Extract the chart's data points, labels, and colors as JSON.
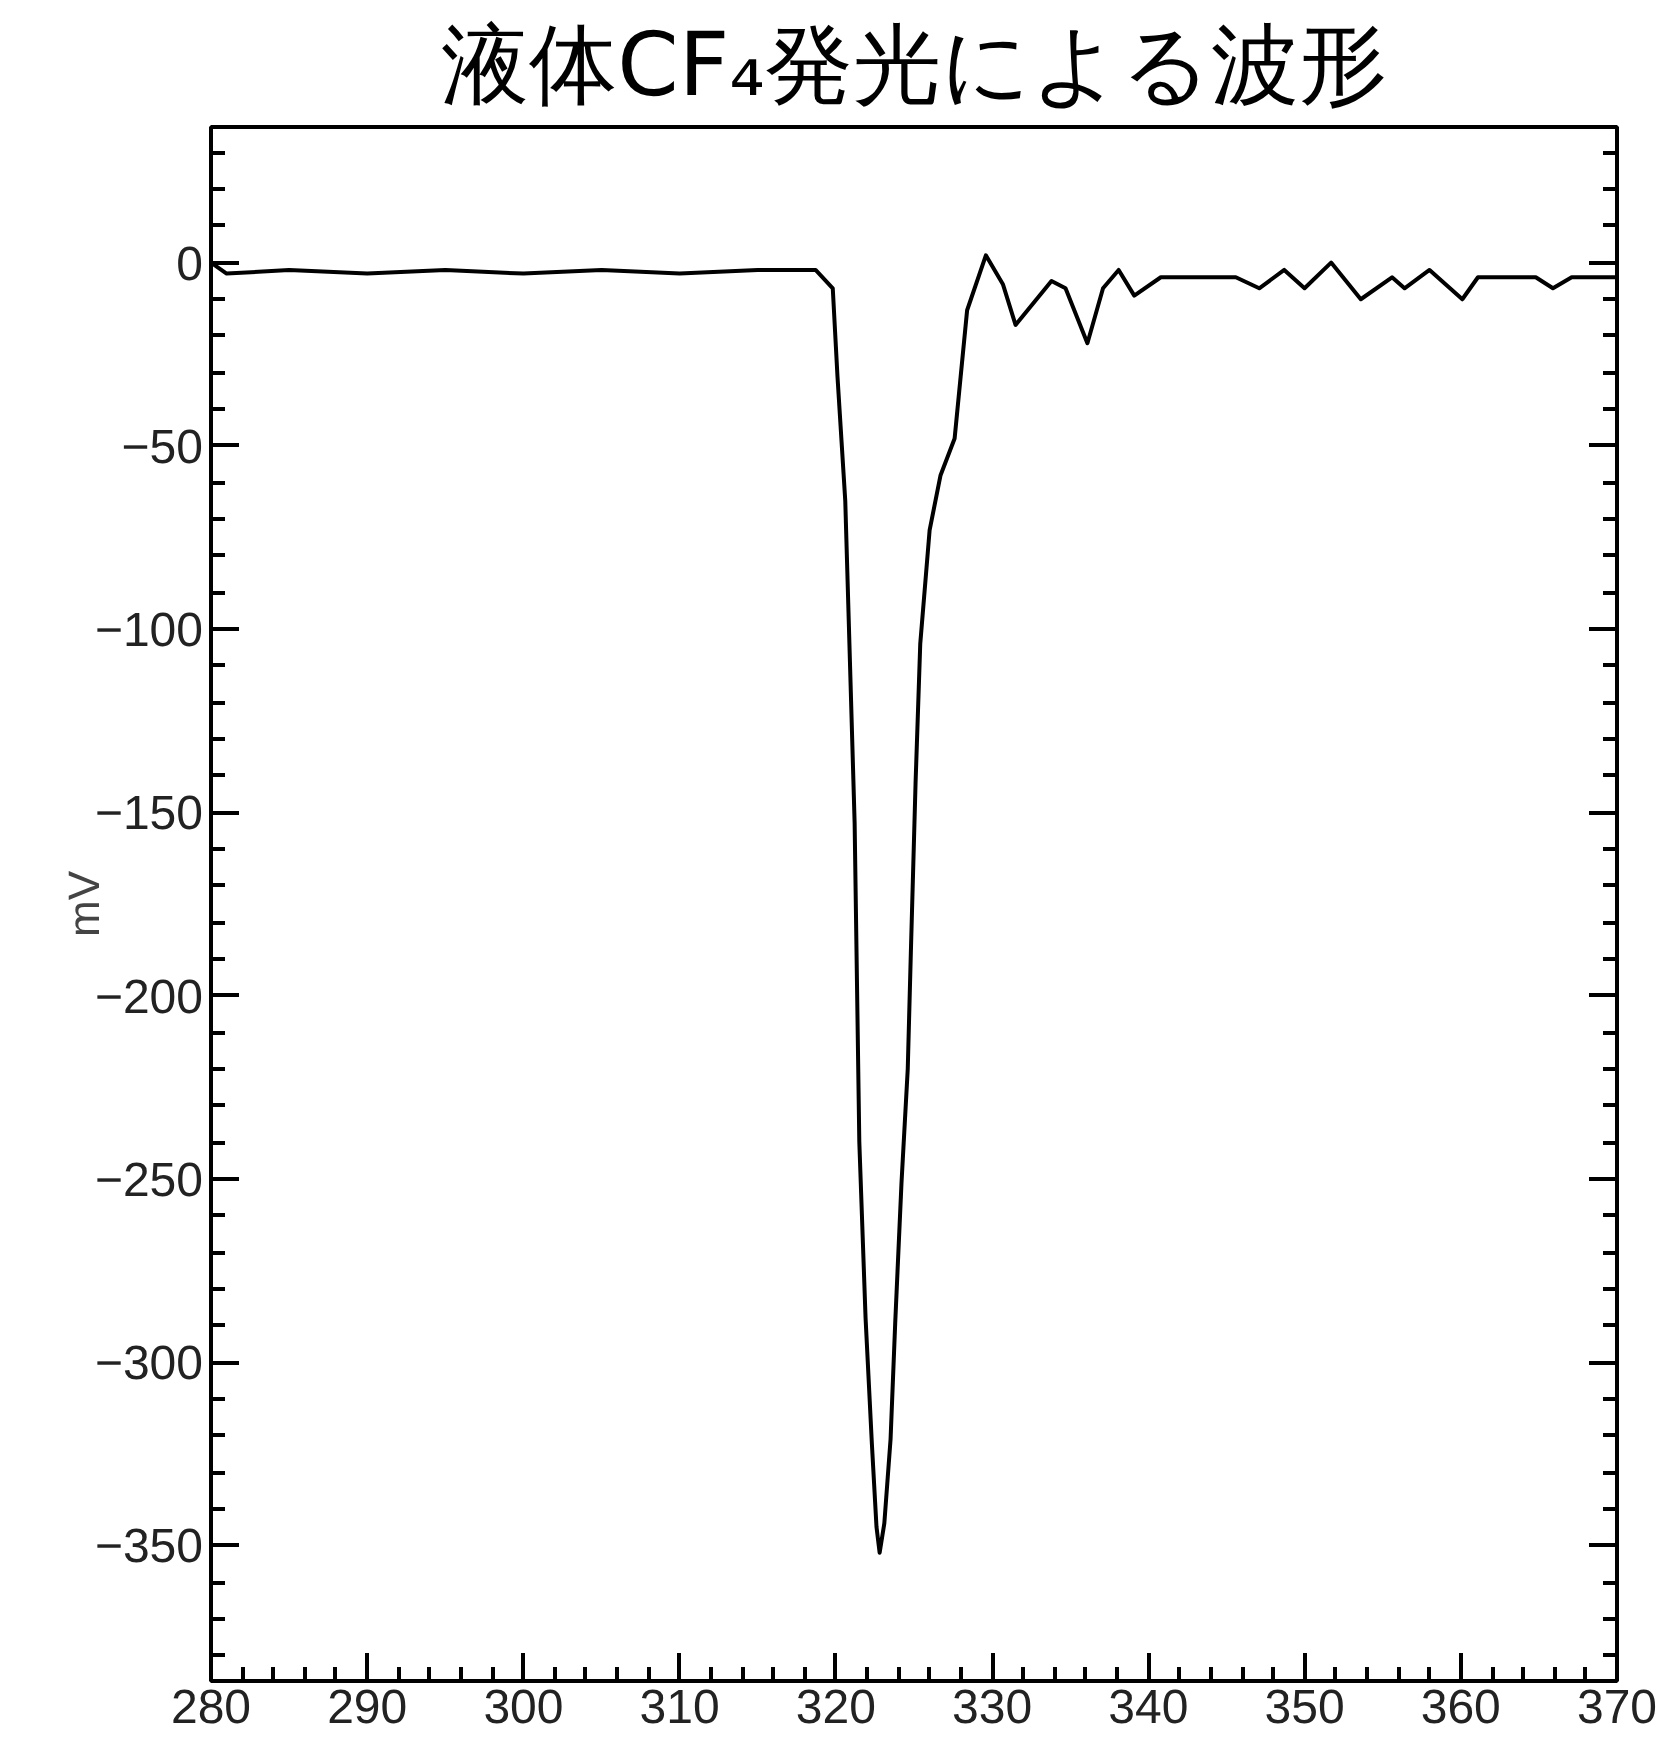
{
  "chart_data": {
    "type": "line",
    "title": "液体CF₄発光による波形",
    "ylabel": "mV",
    "x": [
      280,
      281,
      285,
      290,
      295,
      300,
      305,
      310,
      315,
      318.7,
      319.8,
      320.1,
      320.6,
      321.2,
      321.5,
      321.9,
      322.3,
      322.6,
      322.8,
      323.1,
      323.5,
      323.8,
      324.2,
      324.6,
      324.8,
      325.1,
      325.4,
      326.0,
      326.7,
      327.6,
      328.4,
      329.6,
      330.7,
      331.5,
      333.8,
      334.7,
      336.1,
      337.1,
      338.1,
      339.1,
      340.8,
      345.6,
      347.1,
      348.7,
      350.0,
      351.7,
      353.6,
      355.6,
      356.4,
      358.0,
      360.1,
      361.1,
      364.8,
      365.9,
      367.1,
      370
    ],
    "series": [
      {
        "color": "#000000",
        "values": [
          0,
          -3,
          -2,
          -3,
          -2,
          -3,
          -2,
          -3,
          -2,
          -2,
          -7,
          -31,
          -65,
          -153,
          -240,
          -288,
          -322,
          -345,
          -352,
          -344,
          -321,
          -289,
          -251,
          -220,
          -188,
          -142,
          -104,
          -73,
          -58,
          -48,
          -13,
          2,
          -6,
          -17,
          -5,
          -7,
          -22,
          -7,
          -2,
          -9,
          -4,
          -4,
          -7,
          -2,
          -7,
          0,
          -10,
          -4,
          -7,
          -2,
          -10,
          -4,
          -4,
          -7,
          -4,
          -4
        ]
      }
    ],
    "xlim": [
      280,
      370
    ],
    "ylim": [
      -387,
      37
    ],
    "xticks": [
      280,
      290,
      300,
      310,
      320,
      330,
      340,
      350,
      360,
      370
    ],
    "yticks": [
      -350,
      -300,
      -250,
      -200,
      -150,
      -100,
      -50,
      0
    ],
    "grid": false,
    "marker": "none",
    "line_style": "solid"
  }
}
